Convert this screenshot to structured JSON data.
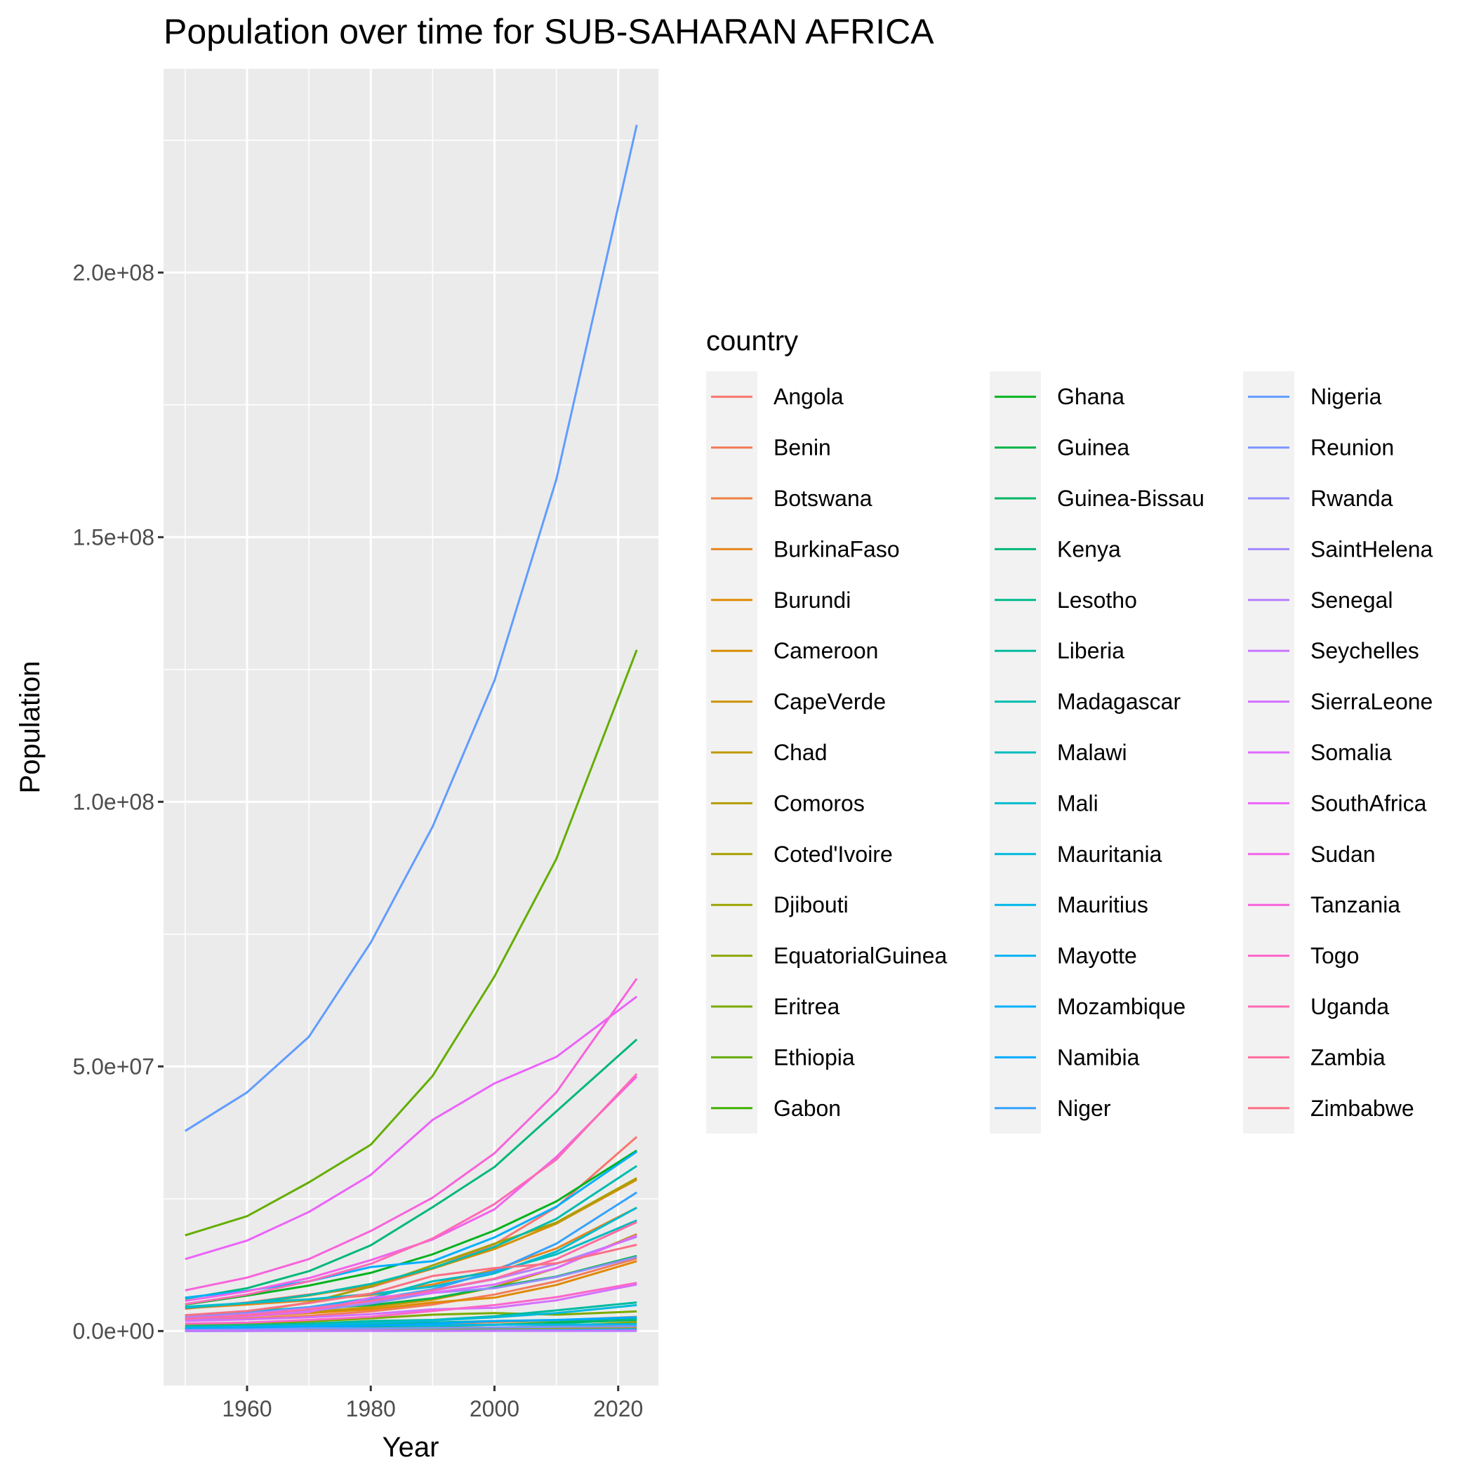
{
  "chart_data": {
    "type": "line",
    "title": "Population over time for SUB-SAHARAN AFRICA",
    "xlabel": "Year",
    "ylabel": "Population",
    "xlim": [
      1946.5,
      2026.5
    ],
    "ylim": [
      -10300000,
      238500000
    ],
    "x_ticks": [
      1960,
      1980,
      2000,
      2020
    ],
    "x_tick_labels": [
      "1960",
      "1980",
      "2000",
      "2020"
    ],
    "y_ticks": [
      0,
      50000000,
      100000000,
      150000000,
      200000000
    ],
    "y_tick_labels": [
      "0.0e+00",
      "5.0e+07",
      "1.0e+08",
      "1.5e+08",
      "2.0e+08"
    ],
    "grid": true,
    "legend": {
      "title": "country",
      "position": "right",
      "columns": 3
    },
    "x": [
      1950,
      1960,
      1970,
      1980,
      1990,
      2000,
      2010,
      2023
    ],
    "series": [
      {
        "name": "Angola",
        "color": "#F8766D",
        "values": [
          4200000,
          5400000,
          6900000,
          8300000,
          11800000,
          16400000,
          23400000,
          36700000
        ]
      },
      {
        "name": "Benin",
        "color": "#F47B58",
        "values": [
          2300000,
          2400000,
          2900000,
          3700000,
          5000000,
          6900000,
          9400000,
          13700000
        ]
      },
      {
        "name": "Botswana",
        "color": "#EE8042",
        "values": [
          400000,
          500000,
          700000,
          1000000,
          1300000,
          1700000,
          2000000,
          2700000
        ]
      },
      {
        "name": "BurkinaFaso",
        "color": "#E7851E",
        "values": [
          4300000,
          5000000,
          5800000,
          6800000,
          8800000,
          11600000,
          15600000,
          23300000
        ]
      },
      {
        "name": "Burundi",
        "color": "#DF8A00",
        "values": [
          2300000,
          2800000,
          3400000,
          4100000,
          5400000,
          6300000,
          8700000,
          13200000
        ]
      },
      {
        "name": "Cameroon",
        "color": "#D68F00",
        "values": [
          4500000,
          5200000,
          6700000,
          8700000,
          11800000,
          15500000,
          20300000,
          28600000
        ]
      },
      {
        "name": "CapeVerde",
        "color": "#CC9400",
        "values": [
          200000,
          200000,
          300000,
          300000,
          300000,
          400000,
          500000,
          600000
        ]
      },
      {
        "name": "Chad",
        "color": "#C19800",
        "values": [
          2500000,
          3000000,
          3600000,
          4500000,
          5900000,
          8300000,
          11900000,
          18300000
        ]
      },
      {
        "name": "Comoros",
        "color": "#B59C00",
        "values": [
          200000,
          200000,
          200000,
          300000,
          400000,
          500000,
          700000,
          900000
        ]
      },
      {
        "name": "Coted'Ivoire",
        "color": "#A9A000",
        "values": [
          2900000,
          3500000,
          5400000,
          8400000,
          12400000,
          16500000,
          20500000,
          28900000
        ]
      },
      {
        "name": "Djibouti",
        "color": "#9BA400",
        "values": [
          100000,
          100000,
          200000,
          300000,
          600000,
          700000,
          800000,
          1000000
        ]
      },
      {
        "name": "EquatorialGuinea",
        "color": "#8CA700",
        "values": [
          200000,
          300000,
          300000,
          300000,
          400000,
          600000,
          900000,
          1700000
        ]
      },
      {
        "name": "Eritrea",
        "color": "#7AAA00",
        "values": [
          1100000,
          1400000,
          1800000,
          2400000,
          3100000,
          3400000,
          3100000,
          3700000
        ]
      },
      {
        "name": "Ethiopia",
        "color": "#64AE00",
        "values": [
          18100000,
          21700000,
          28100000,
          35200000,
          48200000,
          67000000,
          89200000,
          128700000
        ]
      },
      {
        "name": "Gabon",
        "color": "#42B100",
        "values": [
          500000,
          500000,
          600000,
          700000,
          900000,
          1200000,
          1600000,
          2400000
        ]
      },
      {
        "name": "Ghana",
        "color": "#00B31E",
        "values": [
          5000000,
          6700000,
          8600000,
          11000000,
          14500000,
          19000000,
          24500000,
          34100000
        ]
      },
      {
        "name": "Guinea",
        "color": "#00B54A",
        "values": [
          3000000,
          3500000,
          4200000,
          4900000,
          6200000,
          8300000,
          10300000,
          14200000
        ]
      },
      {
        "name": "Guinea-Bissau",
        "color": "#00B764",
        "values": [
          500000,
          600000,
          700000,
          800000,
          1000000,
          1200000,
          1500000,
          2100000
        ]
      },
      {
        "name": "Kenya",
        "color": "#00B87A",
        "values": [
          6100000,
          8100000,
          11300000,
          16200000,
          23400000,
          31000000,
          41500000,
          55100000
        ]
      },
      {
        "name": "Lesotho",
        "color": "#00BA8D",
        "values": [
          700000,
          900000,
          1100000,
          1300000,
          1600000,
          1900000,
          2000000,
          2300000
        ]
      },
      {
        "name": "Liberia",
        "color": "#00BB9F",
        "values": [
          900000,
          1100000,
          1400000,
          1900000,
          2100000,
          2800000,
          3900000,
          5400000
        ]
      },
      {
        "name": "Madagascar",
        "color": "#00BCAF",
        "values": [
          4400000,
          5300000,
          6800000,
          8900000,
          11900000,
          15900000,
          21200000,
          31200000
        ]
      },
      {
        "name": "Malawi",
        "color": "#00BCBF",
        "values": [
          2900000,
          3600000,
          4500000,
          6200000,
          9400000,
          11200000,
          14500000,
          20900000
        ]
      },
      {
        "name": "Mali",
        "color": "#00BCCE",
        "values": [
          4600000,
          5300000,
          6000000,
          7000000,
          8400000,
          10900000,
          15000000,
          23300000
        ]
      },
      {
        "name": "Mauritania",
        "color": "#00BADC",
        "values": [
          600000,
          800000,
          1100000,
          1500000,
          2000000,
          2600000,
          3400000,
          4900000
        ]
      },
      {
        "name": "Mauritius",
        "color": "#00B8E9",
        "values": [
          500000,
          700000,
          800000,
          1000000,
          1100000,
          1200000,
          1200000,
          1300000
        ]
      },
      {
        "name": "Mayotte",
        "color": "#00B4F4",
        "values": [
          0,
          20000,
          40000,
          50000,
          90000,
          160000,
          210000,
          320000
        ]
      },
      {
        "name": "Mozambique",
        "color": "#00B0FD",
        "values": [
          6300000,
          7600000,
          9400000,
          12100000,
          13200000,
          17700000,
          23500000,
          33900000
        ]
      },
      {
        "name": "Namibia",
        "color": "#00ABFF",
        "values": [
          500000,
          600000,
          800000,
          1000000,
          1400000,
          1900000,
          2100000,
          2600000
        ]
      },
      {
        "name": "Niger",
        "color": "#35A2FF",
        "values": [
          2500000,
          3400000,
          4500000,
          5900000,
          7900000,
          11300000,
          16500000,
          26200000
        ]
      },
      {
        "name": "Nigeria",
        "color": "#619CFF",
        "values": [
          37800000,
          45100000,
          55600000,
          73400000,
          95300000,
          122900000,
          160900000,
          227900000
        ]
      },
      {
        "name": "Reunion",
        "color": "#7C96FF",
        "values": [
          200000,
          300000,
          500000,
          500000,
          600000,
          700000,
          800000,
          900000
        ]
      },
      {
        "name": "Rwanda",
        "color": "#928EFF",
        "values": [
          2100000,
          2900000,
          3800000,
          5200000,
          7200000,
          8100000,
          10200000,
          14000000
        ]
      },
      {
        "name": "SaintHelena",
        "color": "#A587FF",
        "values": [
          0,
          0,
          0,
          0,
          0,
          0,
          0,
          0
        ]
      },
      {
        "name": "Senegal",
        "color": "#B67FFF",
        "values": [
          2600000,
          3300000,
          4300000,
          5600000,
          7600000,
          9800000,
          12700000,
          17800000
        ]
      },
      {
        "name": "Seychelles",
        "color": "#C677FF",
        "values": [
          0,
          40000,
          50000,
          60000,
          70000,
          80000,
          90000,
          100000
        ]
      },
      {
        "name": "SierraLeone",
        "color": "#D470FF",
        "values": [
          1900000,
          2200000,
          2600000,
          3200000,
          4100000,
          4400000,
          5800000,
          8800000
        ]
      },
      {
        "name": "Somalia",
        "color": "#E06AFF",
        "values": [
          2300000,
          2800000,
          3600000,
          6300000,
          7200000,
          8800000,
          11900000,
          18100000
        ]
      },
      {
        "name": "SouthAfrica",
        "color": "#EB63F9",
        "values": [
          13600000,
          17100000,
          22500000,
          29500000,
          39900000,
          46800000,
          51800000,
          63200000
        ]
      },
      {
        "name": "Sudan",
        "color": "#F262EB",
        "values": [
          5700000,
          7500000,
          10000000,
          13400000,
          17300000,
          23000000,
          32900000,
          48100000
        ]
      },
      {
        "name": "Tanzania",
        "color": "#F863DB",
        "values": [
          7700000,
          10100000,
          13600000,
          18900000,
          25200000,
          33600000,
          45100000,
          66600000
        ]
      },
      {
        "name": "Togo",
        "color": "#FC66C9",
        "values": [
          1400000,
          1600000,
          2100000,
          2700000,
          3800000,
          4900000,
          6400000,
          9100000
        ]
      },
      {
        "name": "Uganda",
        "color": "#FE6BB5",
        "values": [
          5100000,
          6900000,
          9400000,
          12700000,
          17500000,
          24000000,
          32400000,
          48600000
        ]
      },
      {
        "name": "Zambia",
        "color": "#FF6C9F",
        "values": [
          2300000,
          3000000,
          4100000,
          5700000,
          7700000,
          9900000,
          13600000,
          20600000
        ]
      },
      {
        "name": "Zimbabwe",
        "color": "#FC7084",
        "values": [
          3000000,
          3800000,
          5300000,
          7100000,
          10400000,
          11900000,
          12800000,
          16300000
        ]
      }
    ]
  }
}
